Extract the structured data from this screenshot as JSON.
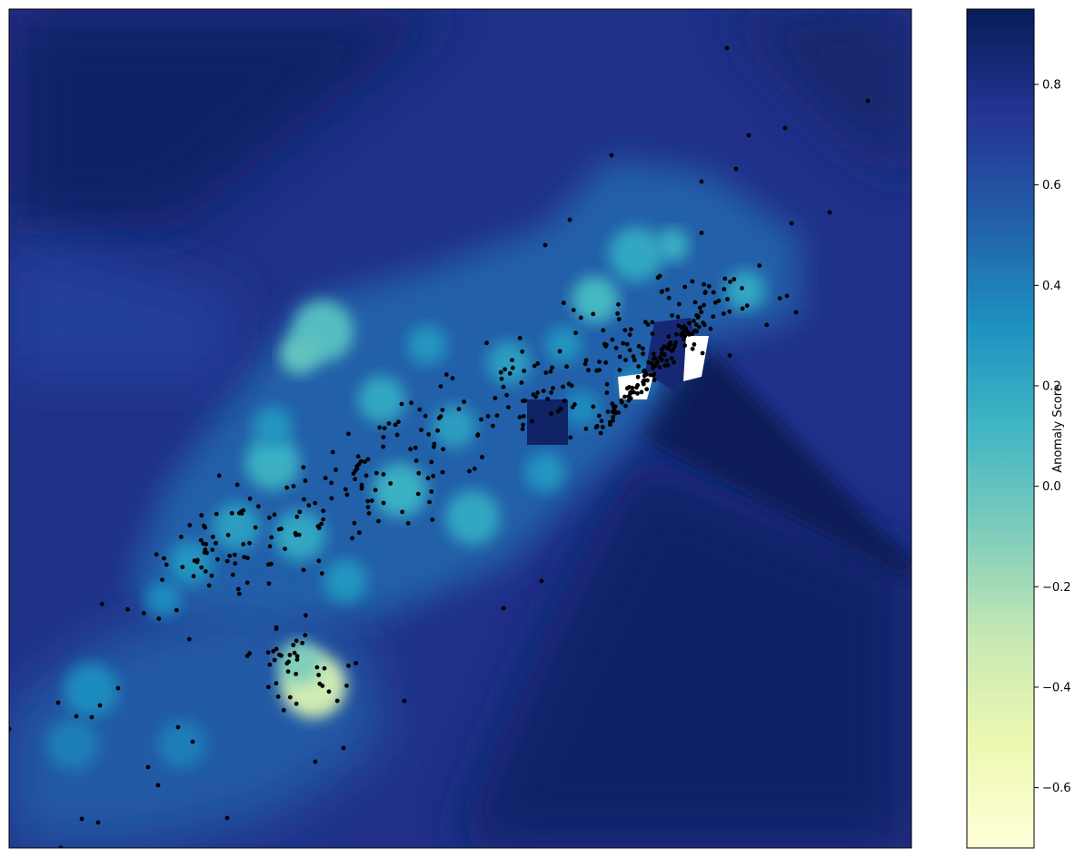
{
  "chart_data": {
    "type": "heatmap",
    "title": "",
    "xlabel": "",
    "ylabel": "",
    "axes_ticks_visible": false,
    "grid": false,
    "legend": "none",
    "overlay": {
      "type": "scatter",
      "marker_color": "#000000",
      "description_points_count_approx": 520
    },
    "colorbar": {
      "label": "Anomaly Score",
      "colormap": "YlGnBu",
      "range": [
        -0.72,
        0.95
      ],
      "ticks": [
        -0.6,
        -0.4,
        -0.2,
        0.0,
        0.2,
        0.4,
        0.6,
        0.8
      ],
      "tick_labels": [
        "−0.6",
        "−0.4",
        "−0.2",
        "0.0",
        "0.2",
        "0.4",
        "0.6",
        "0.8"
      ],
      "placement": "right"
    },
    "colormap_stops": [
      "#ffffd9",
      "#edf8b1",
      "#c7e9b4",
      "#7fcdbb",
      "#41b6c4",
      "#1d91c0",
      "#225ea8",
      "#253494",
      "#081d58"
    ],
    "field": {
      "background_score": 0.78,
      "low_score_regions_description": "yellow-green hot spots around dense clusters of points"
    }
  }
}
